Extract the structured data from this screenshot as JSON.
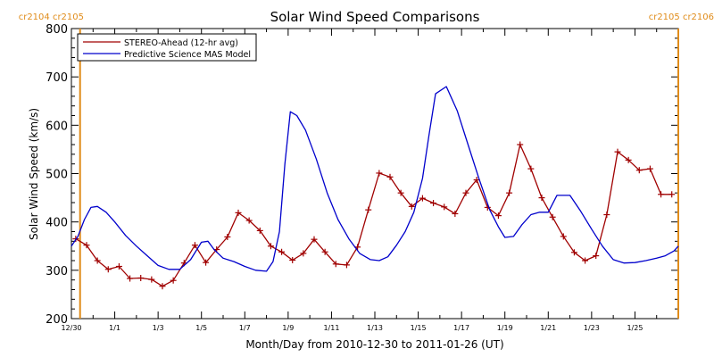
{
  "chart_data": {
    "type": "line",
    "title": "Solar Wind Speed Comparisons",
    "xlabel": "Month/Day from 2010-12-30 to 2011-01-26 (UT)",
    "ylabel": "Solar Wind Speed (km/s)",
    "xlim": [
      0,
      28
    ],
    "ylim": [
      200,
      800
    ],
    "yticks": [
      200,
      300,
      400,
      500,
      600,
      700,
      800
    ],
    "xticks": [
      {
        "x": 0,
        "label": "12/30"
      },
      {
        "x": 2,
        "label": "1/1"
      },
      {
        "x": 4,
        "label": "1/3"
      },
      {
        "x": 6,
        "label": "1/5"
      },
      {
        "x": 8,
        "label": "1/7"
      },
      {
        "x": 10,
        "label": "1/9"
      },
      {
        "x": 12,
        "label": "1/11"
      },
      {
        "x": 14,
        "label": "1/13"
      },
      {
        "x": 16,
        "label": "1/15"
      },
      {
        "x": 18,
        "label": "1/17"
      },
      {
        "x": 20,
        "label": "1/19"
      },
      {
        "x": 22,
        "label": "1/21"
      },
      {
        "x": 24,
        "label": "1/23"
      },
      {
        "x": 26,
        "label": "1/25"
      }
    ],
    "carrington": [
      {
        "x": 0.4,
        "label": "cr2104 cr2105",
        "anchor": "end"
      },
      {
        "x": 28.0,
        "label": "cr2105 cr2106",
        "anchor": "end"
      }
    ],
    "legend_placement": "top-left",
    "series": [
      {
        "name": "STEREO-Ahead (12-hr avg)",
        "color": "#a00000",
        "markers": "plus",
        "x": [
          0.2,
          0.7,
          1.2,
          1.7,
          2.2,
          2.7,
          3.2,
          3.7,
          4.2,
          4.7,
          5.2,
          5.7,
          6.2,
          6.7,
          7.2,
          7.7,
          8.2,
          8.7,
          9.2,
          9.7,
          10.2,
          10.7,
          11.2,
          11.7,
          12.2,
          12.7,
          13.2,
          13.7,
          14.2,
          14.7,
          15.2,
          15.7,
          16.2,
          16.7,
          17.2,
          17.7,
          18.2,
          18.7,
          19.2,
          19.7,
          20.2,
          20.7,
          21.2,
          21.7,
          22.2,
          22.7,
          23.2,
          23.7,
          24.2,
          24.7,
          25.2,
          25.7,
          26.2,
          26.7,
          27.2,
          27.7
        ],
        "values": [
          365,
          352,
          320,
          302,
          308,
          283,
          284,
          281,
          267,
          279,
          315,
          352,
          316,
          343,
          369,
          419,
          403,
          382,
          350,
          338,
          321,
          335,
          364,
          338,
          313,
          311,
          348,
          425,
          501,
          493,
          460,
          432,
          449,
          439,
          431,
          417,
          460,
          487,
          430,
          413,
          460,
          560,
          510,
          450,
          410,
          370,
          337,
          320,
          330,
          415,
          545,
          528,
          507,
          510,
          457,
          457
        ]
      },
      {
        "name": "Predictive Science MAS Model",
        "color": "#0000cc",
        "markers": "none",
        "x": [
          0,
          0.3,
          0.6,
          0.9,
          1.2,
          1.6,
          2,
          2.5,
          3,
          3.5,
          4,
          4.5,
          5,
          5.5,
          6,
          6.3,
          6.6,
          7,
          7.5,
          8,
          8.5,
          9,
          9.3,
          9.6,
          9.85,
          10.1,
          10.4,
          10.8,
          11.3,
          11.8,
          12.3,
          12.8,
          13.3,
          13.8,
          14.2,
          14.6,
          15,
          15.4,
          15.8,
          16.2,
          16.5,
          16.8,
          17.3,
          17.8,
          18.3,
          18.8,
          19.3,
          19.7,
          20,
          20.4,
          20.8,
          21.2,
          21.6,
          22,
          22.4,
          23,
          23.5,
          24,
          24.5,
          25,
          25.5,
          26,
          26.5,
          27,
          27.4,
          27.8,
          28
        ],
        "values": [
          350,
          370,
          405,
          430,
          432,
          420,
          400,
          372,
          350,
          330,
          310,
          302,
          302,
          322,
          358,
          360,
          342,
          325,
          318,
          308,
          300,
          298,
          318,
          380,
          520,
          628,
          620,
          590,
          530,
          460,
          405,
          365,
          335,
          322,
          320,
          328,
          352,
          380,
          420,
          490,
          580,
          665,
          680,
          630,
          560,
          490,
          425,
          390,
          368,
          370,
          395,
          415,
          420,
          420,
          455,
          455,
          422,
          385,
          350,
          322,
          315,
          316,
          320,
          325,
          330,
          340,
          350
        ]
      }
    ]
  }
}
